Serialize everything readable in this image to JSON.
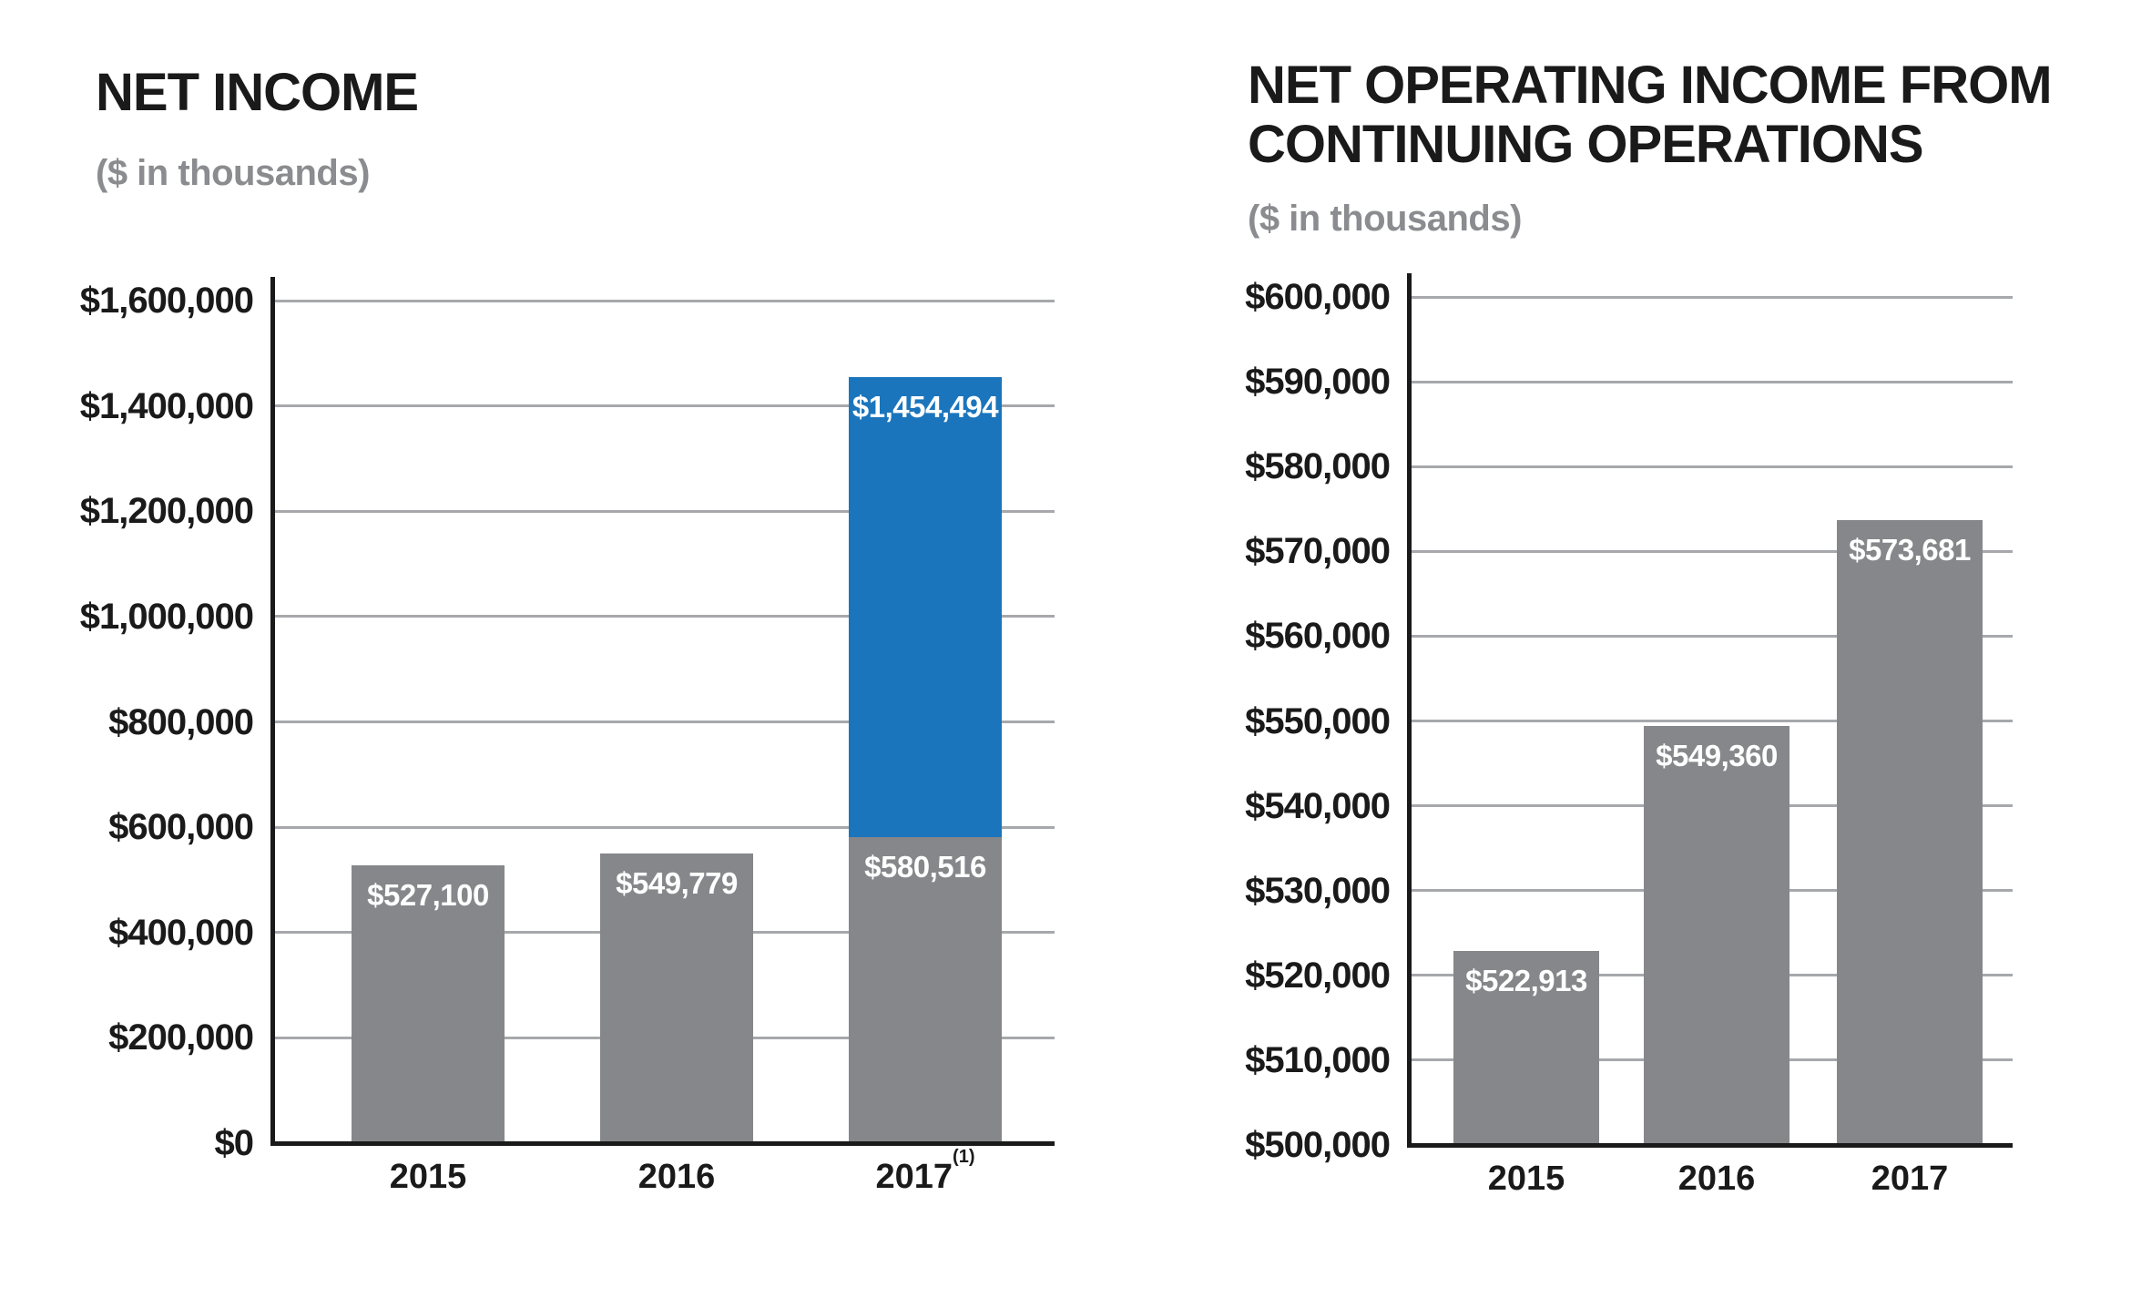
{
  "colors": {
    "bar_gray": "#85878a",
    "bar_blue": "#1b75bc",
    "gridline": "#a6a8ab",
    "axis": "#1a1a1a",
    "title": "#1a1a1a",
    "subtitle": "#8a8c8f",
    "bar_label": "#ffffff"
  },
  "chart_data": [
    {
      "type": "bar",
      "title": "NET INCOME",
      "title_lines": [
        "NET INCOME"
      ],
      "subtitle": "($ in thousands)",
      "xlabel": "",
      "ylabel": "",
      "legend": false,
      "grid": true,
      "ylim": [
        0,
        1600000
      ],
      "ytick_step": 200000,
      "yticks": [
        {
          "value": 1600000,
          "label": "$1,600,000"
        },
        {
          "value": 1400000,
          "label": "$1,400,000"
        },
        {
          "value": 1200000,
          "label": "$1,200,000"
        },
        {
          "value": 1000000,
          "label": "$1,000,000"
        },
        {
          "value": 800000,
          "label": "$800,000"
        },
        {
          "value": 600000,
          "label": "$600,000"
        },
        {
          "value": 400000,
          "label": "$400,000"
        },
        {
          "value": 200000,
          "label": "$200,000"
        },
        {
          "value": 0,
          "label": "$0"
        }
      ],
      "categories": [
        "2015",
        "2016",
        "2017"
      ],
      "bars": [
        {
          "category": "2015",
          "category_note": "",
          "segments": [
            {
              "top_value": 527100,
              "label": "$527,100",
              "color": "gray"
            }
          ]
        },
        {
          "category": "2016",
          "category_note": "",
          "segments": [
            {
              "top_value": 549779,
              "label": "$549,779",
              "color": "gray"
            }
          ]
        },
        {
          "category": "2017",
          "category_note": "(1)",
          "segments": [
            {
              "top_value": 580516,
              "label": "$580,516",
              "color": "gray"
            },
            {
              "top_value": 1454494,
              "label": "$1,454,494",
              "color": "blue"
            }
          ]
        }
      ]
    },
    {
      "type": "bar",
      "title": "NET OPERATING INCOME FROM CONTINUING OPERATIONS",
      "title_lines": [
        "NET OPERATING INCOME FROM",
        "CONTINUING OPERATIONS"
      ],
      "subtitle": "($ in thousands)",
      "xlabel": "",
      "ylabel": "",
      "legend": false,
      "grid": true,
      "ylim": [
        500000,
        600000
      ],
      "ytick_step": 10000,
      "yticks": [
        {
          "value": 600000,
          "label": "$600,000"
        },
        {
          "value": 590000,
          "label": "$590,000"
        },
        {
          "value": 580000,
          "label": "$580,000"
        },
        {
          "value": 570000,
          "label": "$570,000"
        },
        {
          "value": 560000,
          "label": "$560,000"
        },
        {
          "value": 550000,
          "label": "$550,000"
        },
        {
          "value": 540000,
          "label": "$540,000"
        },
        {
          "value": 530000,
          "label": "$530,000"
        },
        {
          "value": 520000,
          "label": "$520,000"
        },
        {
          "value": 510000,
          "label": "$510,000"
        },
        {
          "value": 500000,
          "label": "$500,000"
        }
      ],
      "categories": [
        "2015",
        "2016",
        "2017"
      ],
      "bars": [
        {
          "category": "2015",
          "category_note": "",
          "segments": [
            {
              "top_value": 522913,
              "label": "$522,913",
              "color": "gray"
            }
          ]
        },
        {
          "category": "2016",
          "category_note": "",
          "segments": [
            {
              "top_value": 549360,
              "label": "$549,360",
              "color": "gray"
            }
          ]
        },
        {
          "category": "2017",
          "category_note": "",
          "segments": [
            {
              "top_value": 573681,
              "label": "$573,681",
              "color": "gray"
            }
          ]
        }
      ]
    }
  ]
}
